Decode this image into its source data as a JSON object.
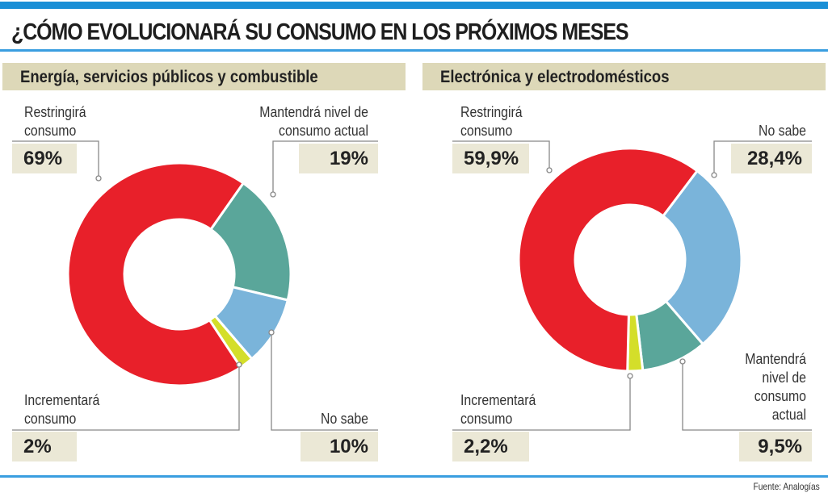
{
  "title": "¿CÓMO EVOLUCIONARÁ SU CONSUMO EN LOS PRÓXIMOS MESES",
  "source": "Fuente: Analogías",
  "colors": {
    "red": "#e8202a",
    "green": "#5aa69a",
    "blue": "#7ab4da",
    "yellow": "#d4de2a",
    "accent": "#1a8fd6"
  },
  "chart_data": [
    {
      "type": "pie",
      "title": "Energía, servicios públicos y combustible",
      "donut": true,
      "slices": [
        {
          "label": "Mantendrá nivel de consumo actual",
          "value": 19,
          "display": "19%",
          "color": "#5aa69a"
        },
        {
          "label": "No sabe",
          "value": 10,
          "display": "10%",
          "color": "#7ab4da"
        },
        {
          "label": "Incrementará consumo",
          "value": 2,
          "display": "2%",
          "color": "#d4de2a"
        },
        {
          "label": "Restringirá consumo",
          "value": 69,
          "display": "69%",
          "color": "#e8202a"
        }
      ]
    },
    {
      "type": "pie",
      "title": "Electrónica y electrodomésticos",
      "donut": true,
      "slices": [
        {
          "label": "No sabe",
          "value": 28.4,
          "display": "28,4%",
          "color": "#7ab4da"
        },
        {
          "label": "Mantendrá nivel de consumo actual",
          "value": 9.5,
          "display": "9,5%",
          "color": "#5aa69a"
        },
        {
          "label": "Incrementará consumo",
          "value": 2.2,
          "display": "2,2%",
          "color": "#d4de2a"
        },
        {
          "label": "Restringirá consumo",
          "value": 59.9,
          "display": "59,9%",
          "color": "#e8202a"
        }
      ]
    }
  ]
}
